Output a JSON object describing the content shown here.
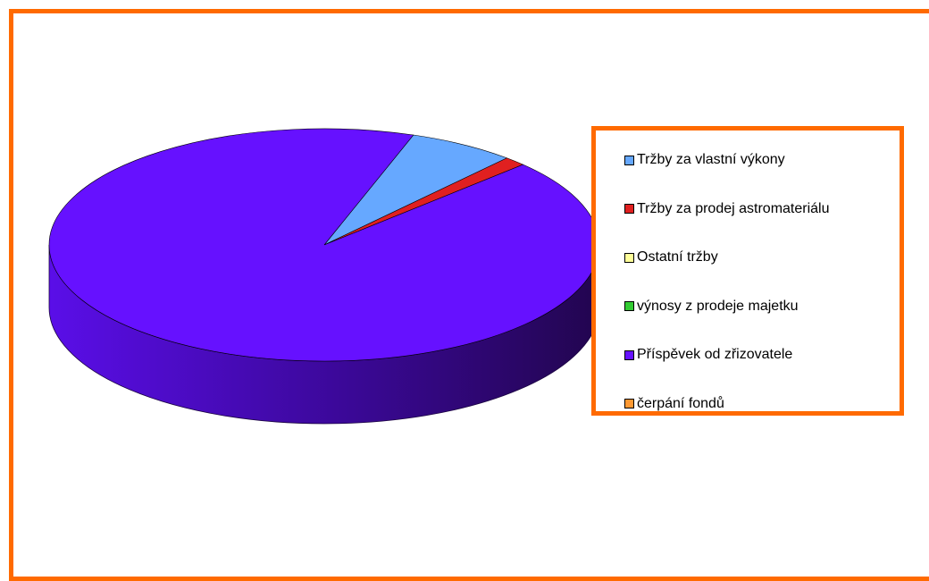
{
  "chart_data": {
    "type": "pie",
    "variant": "3d",
    "title": "",
    "categories": [
      "Tržby za vlastní výkony",
      "Tržby za prodej astromateriálu",
      "Ostatní tržby",
      "výnosy z prodeje majetku",
      "Příspěvek od zřizovatele",
      "čerpání fondů"
    ],
    "values": [
      6.3,
      1.3,
      0.0,
      0.0,
      92.4,
      0.0
    ],
    "colors": [
      "#66a8ff",
      "#e02020",
      "#ffff99",
      "#33cc33",
      "#6611ff",
      "#ff9933"
    ],
    "legend": "right",
    "legend_border_color": "#ff6a00",
    "frame_border_color": "#ff6a00"
  }
}
